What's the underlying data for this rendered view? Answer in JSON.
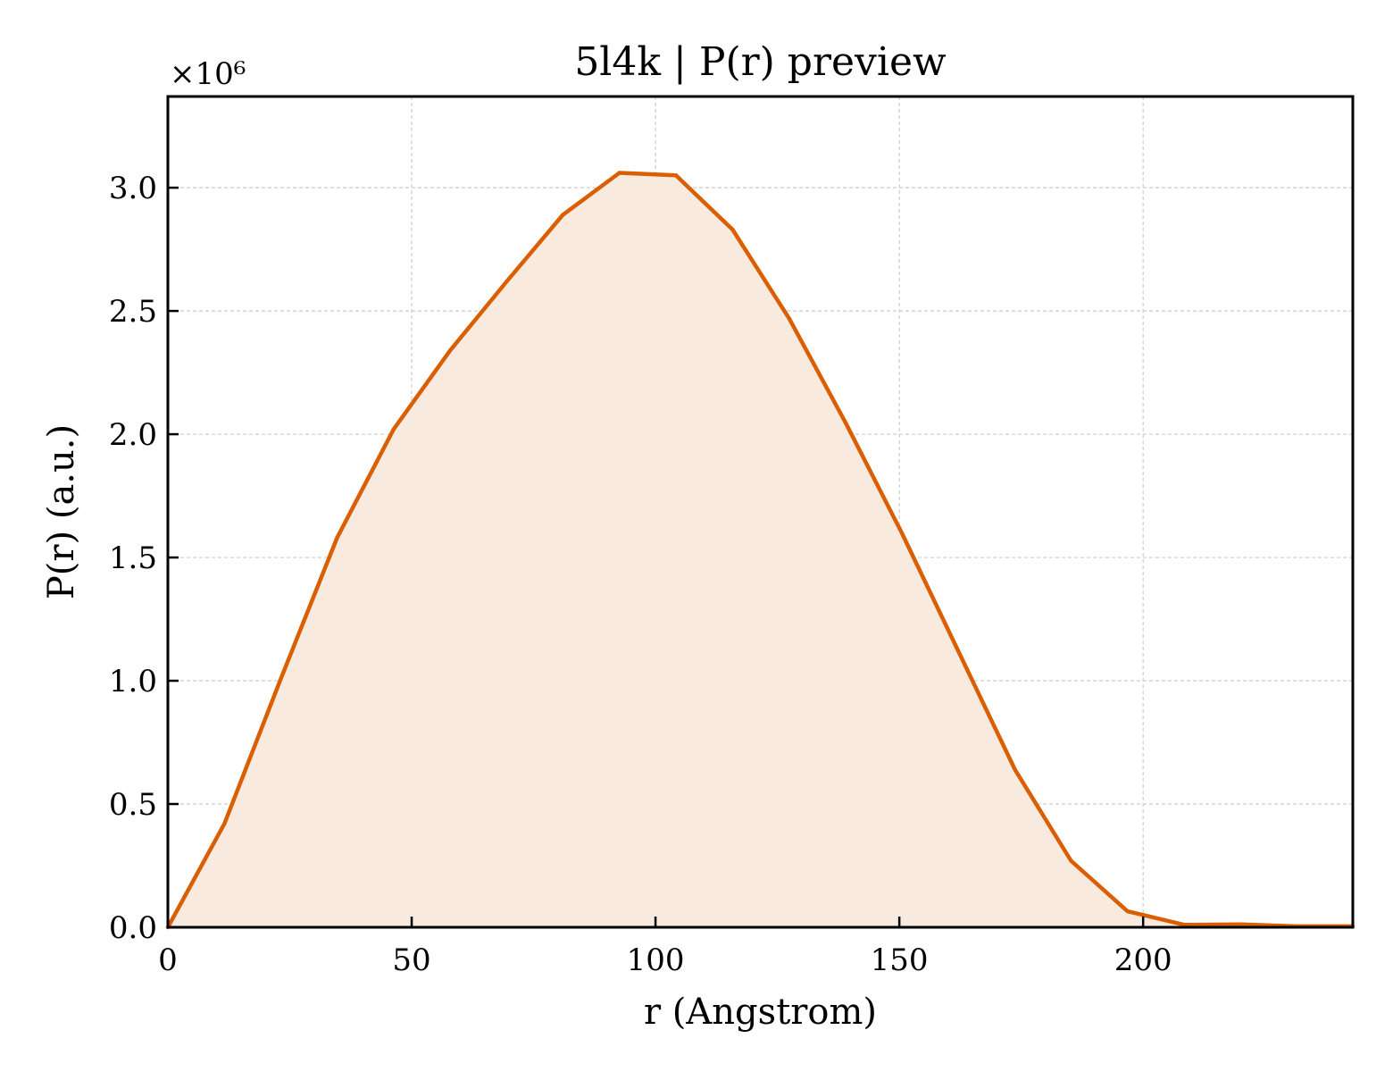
{
  "chart_data": {
    "type": "area",
    "title": "5l4k | P(r) preview",
    "xlabel": "r (Angstrom)",
    "ylabel": "P(r) (a.u.)",
    "y_multiplier_label": "×10⁶",
    "xlim": [
      0,
      243
    ],
    "ylim": [
      0,
      3.37
    ],
    "x_ticks": [
      0,
      50,
      100,
      150,
      200
    ],
    "x_tick_labels": [
      "0",
      "50",
      "100",
      "150",
      "200"
    ],
    "y_ticks": [
      0.0,
      0.5,
      1.0,
      1.5,
      2.0,
      2.5,
      3.0
    ],
    "y_tick_labels": [
      "0.0",
      "0.5",
      "1.0",
      "1.5",
      "2.0",
      "2.5",
      "3.0"
    ],
    "grid": true,
    "line_color": "#d95f02",
    "fill_color": "#f8eadf",
    "series": [
      {
        "x": [
          0,
          11.6,
          23.2,
          34.7,
          46.3,
          57.9,
          69.5,
          81.0,
          92.6,
          104.2,
          115.8,
          127.4,
          138.9,
          150.5,
          162.1,
          173.7,
          185.2,
          196.8,
          208.4,
          220.0,
          231.5,
          243.0
        ],
        "values": [
          0.0,
          0.42,
          1.01,
          1.58,
          2.02,
          2.34,
          2.62,
          2.89,
          3.06,
          3.05,
          2.83,
          2.47,
          2.05,
          1.6,
          1.12,
          0.64,
          0.27,
          0.065,
          0.01,
          0.012,
          0.004,
          0.004
        ]
      }
    ]
  }
}
